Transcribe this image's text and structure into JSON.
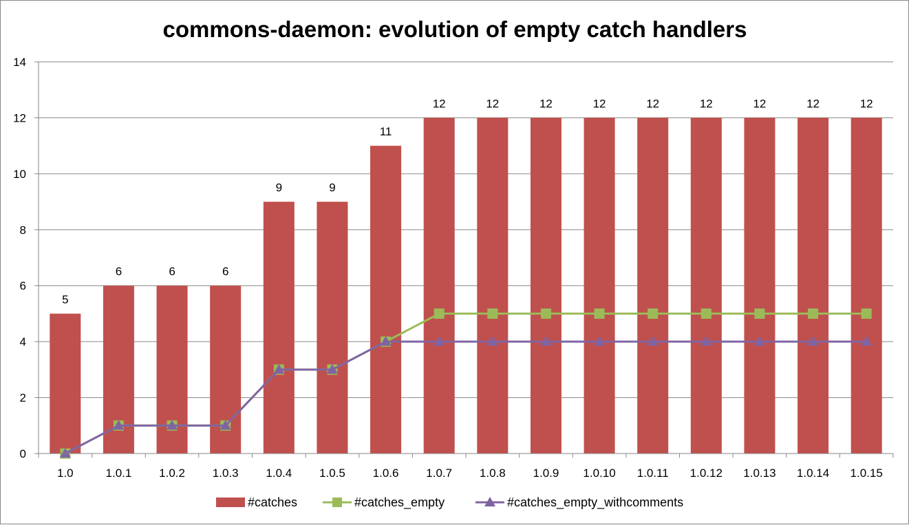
{
  "chart_data": {
    "type": "bar",
    "title": "commons-daemon: evolution of empty catch handlers",
    "xlabel": "",
    "ylabel": "",
    "categories": [
      "1.0",
      "1.0.1",
      "1.0.2",
      "1.0.3",
      "1.0.4",
      "1.0.5",
      "1.0.6",
      "1.0.7",
      "1.0.8",
      "1.0.9",
      "1.0.10",
      "1.0.11",
      "1.0.12",
      "1.0.13",
      "1.0.14",
      "1.0.15"
    ],
    "ylim": [
      0,
      14
    ],
    "yticks": [
      0,
      2,
      4,
      6,
      8,
      10,
      12,
      14
    ],
    "grid": true,
    "legend_position": "bottom",
    "series": [
      {
        "name": "#catches",
        "type": "bar",
        "color": "#C0504D",
        "data_labels": true,
        "values": [
          5,
          6,
          6,
          6,
          9,
          9,
          11,
          12,
          12,
          12,
          12,
          12,
          12,
          12,
          12,
          12
        ]
      },
      {
        "name": "#catches_empty",
        "type": "line",
        "marker": "square",
        "color": "#9BBB59",
        "values": [
          0,
          1,
          1,
          1,
          3,
          3,
          4,
          5,
          5,
          5,
          5,
          5,
          5,
          5,
          5,
          5
        ]
      },
      {
        "name": "#catches_empty_withcomments",
        "type": "line",
        "marker": "triangle",
        "color": "#8064A2",
        "values": [
          0,
          1,
          1,
          1,
          3,
          3,
          4,
          4,
          4,
          4,
          4,
          4,
          4,
          4,
          4,
          4
        ]
      }
    ]
  }
}
